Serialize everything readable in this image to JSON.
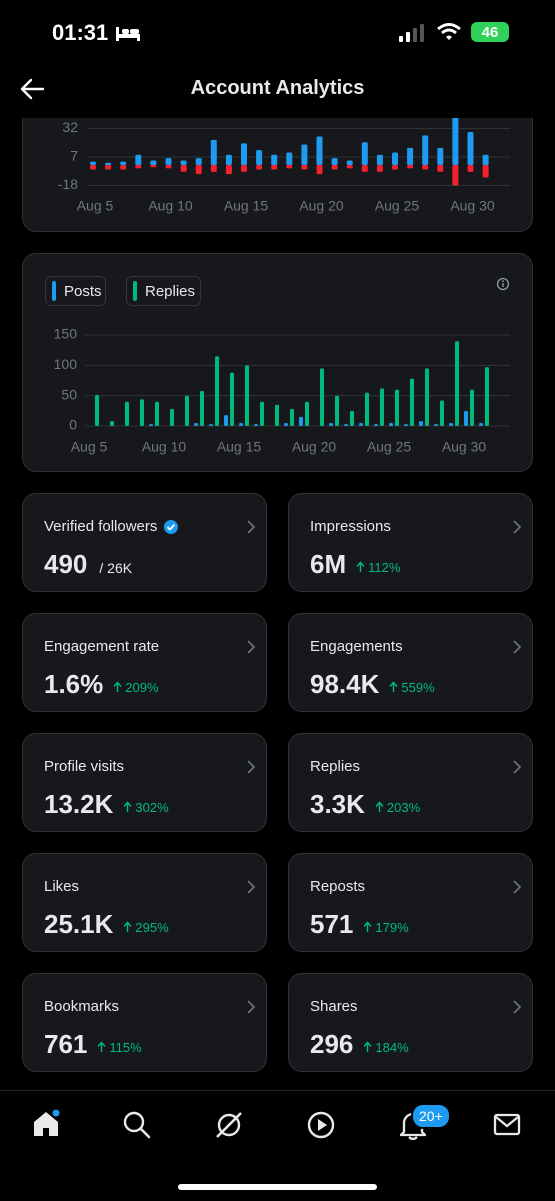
{
  "status_bar": {
    "time": "01:31",
    "battery": "46"
  },
  "header": {
    "title": "Account Analytics"
  },
  "chart_data": [
    {
      "type": "bar",
      "categories": [
        "Aug 5",
        null,
        null,
        null,
        null,
        "Aug 10",
        null,
        null,
        null,
        null,
        "Aug 15",
        null,
        null,
        null,
        null,
        "Aug 20",
        null,
        null,
        null,
        null,
        "Aug 25",
        null,
        null,
        null,
        null,
        "Aug 30",
        null
      ],
      "series": [
        {
          "color": "#1d9bf0",
          "values": [
            3,
            2,
            3,
            9,
            4,
            6,
            4,
            6,
            22,
            9,
            19,
            13,
            9,
            11,
            18,
            25,
            6,
            4,
            20,
            9,
            11,
            15,
            26,
            15,
            45,
            29,
            9
          ]
        },
        {
          "color": "#f4212e",
          "values": [
            -4,
            -4,
            -4,
            -3,
            -2,
            -3,
            -6,
            -8,
            -6,
            -8,
            -6,
            -4,
            -4,
            -3,
            -4,
            -8,
            -4,
            -3,
            -6,
            -6,
            -4,
            -3,
            -4,
            -6,
            -18,
            -6,
            -11
          ]
        }
      ],
      "ylim": [
        -25,
        50
      ],
      "yticks": [
        -18,
        7,
        32
      ],
      "grid": true
    },
    {
      "type": "bar",
      "categories": [
        "Aug 5",
        null,
        null,
        null,
        null,
        "Aug 10",
        null,
        null,
        null,
        null,
        "Aug 15",
        null,
        null,
        null,
        null,
        "Aug 20",
        null,
        null,
        null,
        null,
        "Aug 25",
        null,
        null,
        null,
        null,
        "Aug 30",
        null
      ],
      "series": [
        {
          "name": "Posts",
          "color": "#1d9bf0",
          "values": [
            0,
            0,
            0,
            0,
            3,
            0,
            0,
            5,
            3,
            18,
            5,
            3,
            0,
            5,
            15,
            0,
            5,
            3,
            5,
            3,
            5,
            3,
            8,
            3,
            5,
            25,
            5
          ]
        },
        {
          "name": "Replies",
          "color": "#00ba7c",
          "values": [
            51,
            8,
            40,
            44,
            40,
            28,
            50,
            58,
            115,
            88,
            100,
            40,
            35,
            28,
            40,
            95,
            50,
            25,
            55,
            62,
            60,
            78,
            95,
            42,
            140,
            60,
            97
          ]
        }
      ],
      "ylim": [
        0,
        150
      ],
      "yticks": [
        0,
        50,
        100,
        150
      ],
      "grid": true
    }
  ],
  "stats": [
    {
      "label": "Verified followers",
      "value": "490",
      "total": "/ 26K",
      "verified": true
    },
    {
      "label": "Impressions",
      "value": "6M",
      "change": "112%"
    },
    {
      "label": "Engagement rate",
      "value": "1.6%",
      "change": "209%"
    },
    {
      "label": "Engagements",
      "value": "98.4K",
      "change": "559%"
    },
    {
      "label": "Profile visits",
      "value": "13.2K",
      "change": "302%"
    },
    {
      "label": "Replies",
      "value": "3.3K",
      "change": "203%"
    },
    {
      "label": "Likes",
      "value": "25.1K",
      "change": "295%"
    },
    {
      "label": "Reposts",
      "value": "571",
      "change": "179%"
    },
    {
      "label": "Bookmarks",
      "value": "761",
      "change": "115%"
    },
    {
      "label": "Shares",
      "value": "296",
      "change": "184%"
    }
  ],
  "nav": {
    "notifications_badge": "20+"
  }
}
